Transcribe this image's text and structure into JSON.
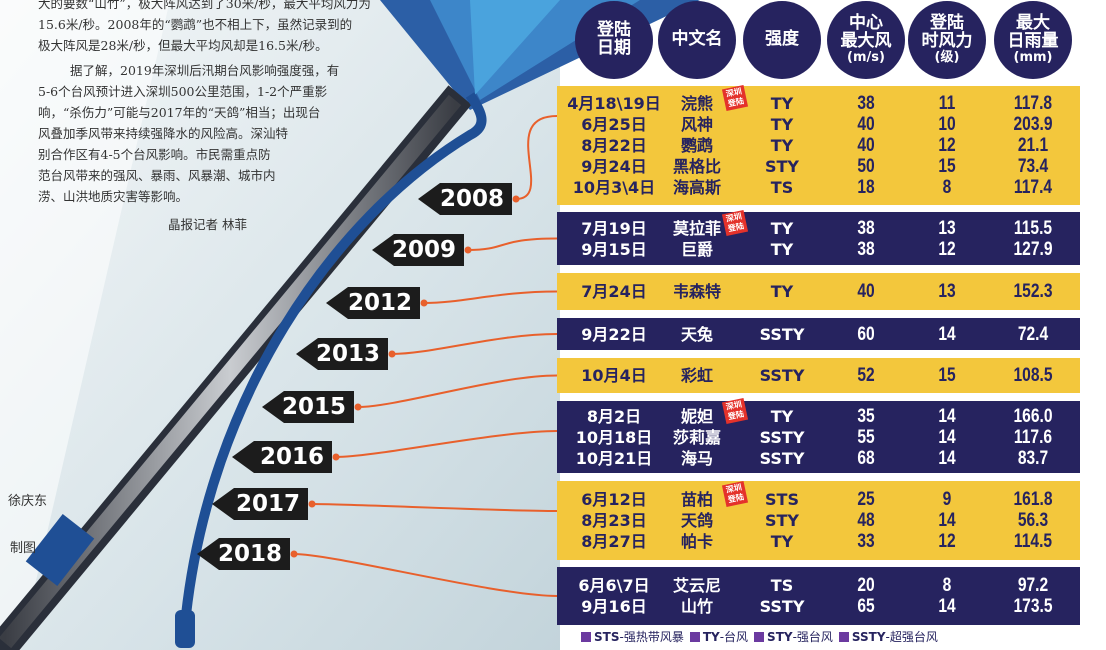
{
  "article": {
    "lines": [
      "大的要数“山竹”，极大阵风达到了30米/秒，最大平均风力为",
      "15.6米/秒。2008年的“鹦鹉”也不相上下，虽然记录到的",
      "极大阵风是28米/秒，但最大平均风却是16.5米/秒。",
      "据了解，2019年深圳后汛期台风影响强度强，有",
      "5-6个台风预计进入深圳500公里范围，1-2个严重影",
      "响，“杀伤力”可能与2017年的“天鸽”相当；出现台",
      "风叠加季风带来持续强降水的风险高。深汕特",
      "别合作区有4-5个台风影响。市民需重点防",
      "范台风带来的强风、暴雨、风暴潮、城市内",
      "涝、山洪地质灾害等影响。"
    ],
    "byline": "晶报记者 林菲"
  },
  "credits": [
    "徐庆东",
    "制图"
  ],
  "table": {
    "header": [
      [
        "登陆",
        "日期"
      ],
      [
        "中文名"
      ],
      [
        "强度"
      ],
      [
        "中心",
        "最大风",
        "(m/s)"
      ],
      [
        "登陆",
        "时风力",
        "(级)"
      ],
      [
        "最大",
        "日雨量",
        "(mm)"
      ]
    ],
    "groups": [
      {
        "year": "2008",
        "rows": [
          [
            "4月18\\19日",
            "浣熊",
            "TY",
            "38",
            "11",
            "117.8"
          ],
          [
            "6月25日",
            "风神",
            "TY",
            "40",
            "10",
            "203.9"
          ],
          [
            "8月22日",
            "鹦鹉",
            "TY",
            "40",
            "12",
            "21.1"
          ],
          [
            "9月24日",
            "黑格比",
            "STY",
            "50",
            "15",
            "73.4"
          ],
          [
            "10月3\\4日",
            "海高斯",
            "TS",
            "18",
            "8",
            "117.4"
          ]
        ],
        "stamp_row": 0,
        "stamp": "深圳登陆"
      },
      {
        "year": "2009",
        "rows": [
          [
            "7月19日",
            "莫拉菲",
            "TY",
            "38",
            "13",
            "115.5"
          ],
          [
            "9月15日",
            "巨爵",
            "TY",
            "38",
            "12",
            "127.9"
          ]
        ],
        "stamp_row": 0,
        "stamp": "深圳登陆"
      },
      {
        "year": "2012",
        "rows": [
          [
            "7月24日",
            "韦森特",
            "TY",
            "40",
            "13",
            "152.3"
          ]
        ]
      },
      {
        "year": "2013",
        "rows": [
          [
            "9月22日",
            "天兔",
            "SSTY",
            "60",
            "14",
            "72.4"
          ]
        ]
      },
      {
        "year": "2015",
        "rows": [
          [
            "10月4日",
            "彩虹",
            "SSTY",
            "52",
            "15",
            "108.5"
          ]
        ]
      },
      {
        "year": "2016",
        "rows": [
          [
            "8月2日",
            "妮妲",
            "TY",
            "35",
            "14",
            "166.0"
          ],
          [
            "10月18日",
            "莎莉嘉",
            "SSTY",
            "55",
            "14",
            "117.6"
          ],
          [
            "10月21日",
            "海马",
            "SSTY",
            "68",
            "14",
            "83.7"
          ]
        ],
        "stamp_row": 0,
        "stamp": "深圳登陆"
      },
      {
        "year": "2017",
        "rows": [
          [
            "6月12日",
            "苗柏",
            "STS",
            "25",
            "9",
            "161.8"
          ],
          [
            "8月23日",
            "天鸽",
            "STY",
            "48",
            "14",
            "56.3"
          ],
          [
            "8月27日",
            "帕卡",
            "TY",
            "33",
            "12",
            "114.5"
          ]
        ],
        "stamp_row": 0,
        "stamp": "深圳登陆"
      },
      {
        "year": "2018",
        "rows": [
          [
            "6月6\\7日",
            "艾云尼",
            "TS",
            "20",
            "8",
            "97.2"
          ],
          [
            "9月16日",
            "山竹",
            "SSTY",
            "65",
            "14",
            "173.5"
          ]
        ]
      }
    ],
    "legend": [
      {
        "code": "STS",
        "name": "-强热带风暴"
      },
      {
        "code": "TY",
        "name": "-台风"
      },
      {
        "code": "STY",
        "name": "-强台风"
      },
      {
        "code": "SSTY",
        "name": "-超强台风"
      }
    ]
  }
}
